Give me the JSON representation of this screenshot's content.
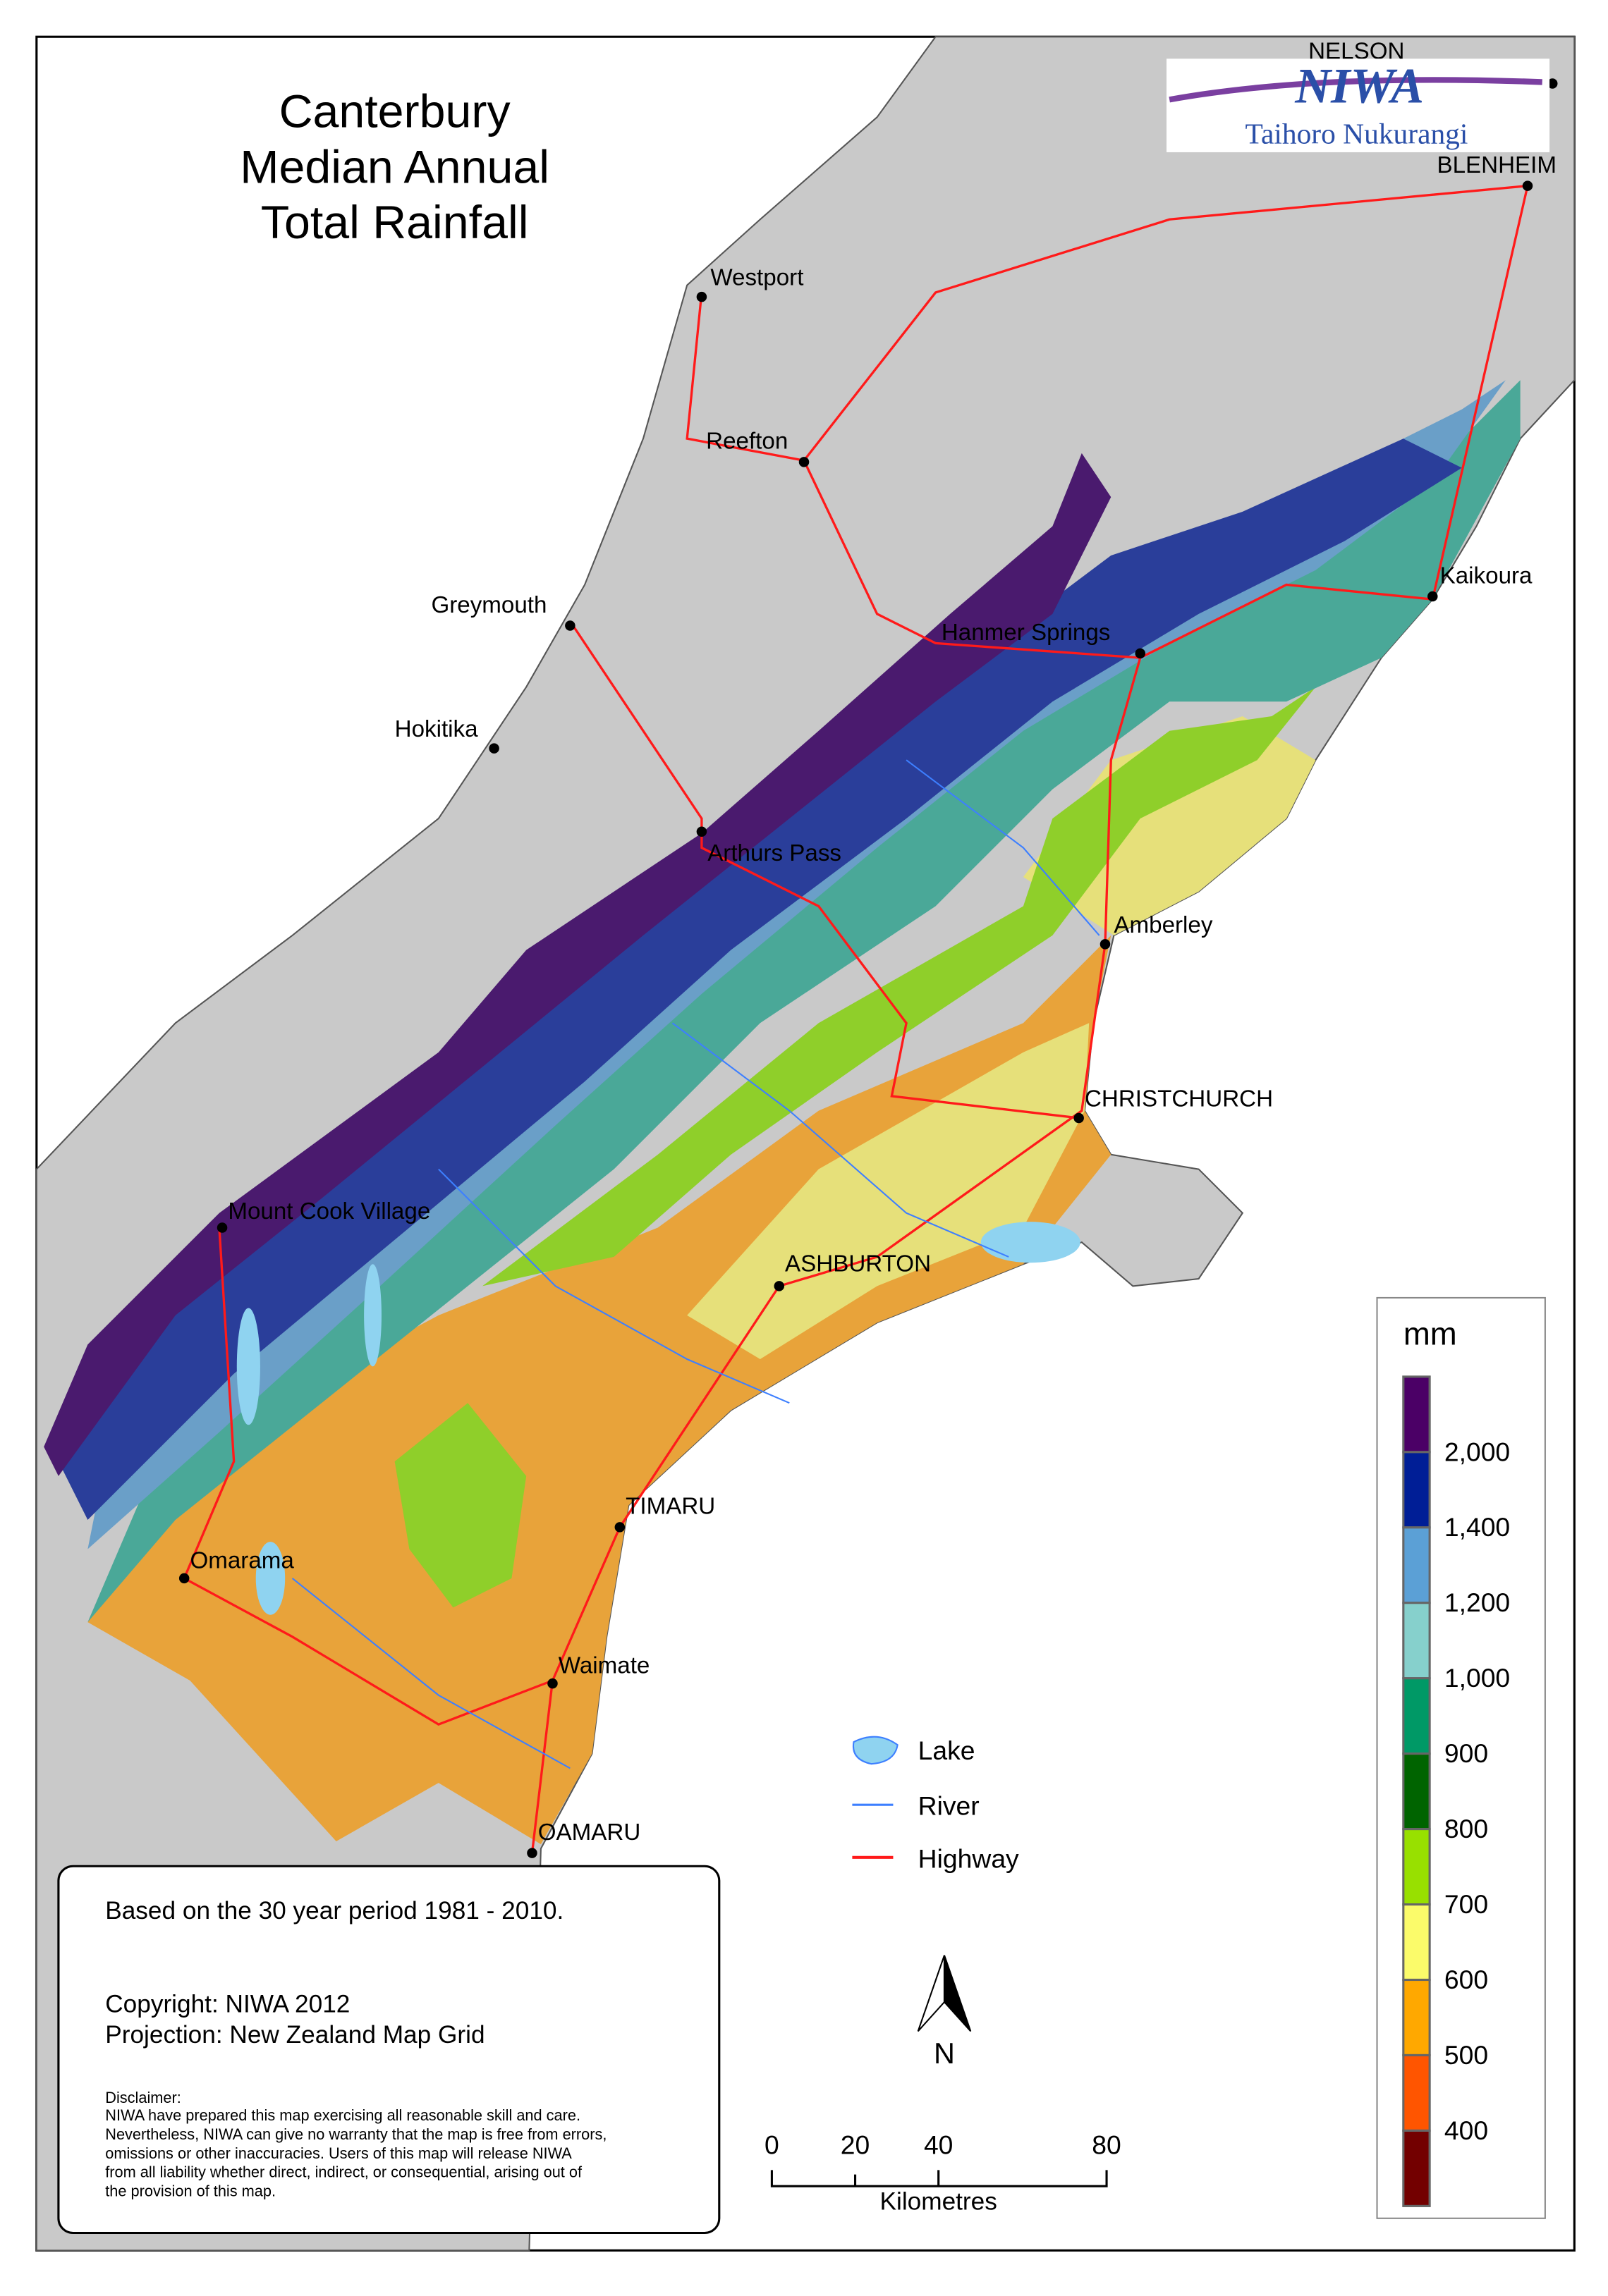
{
  "title": {
    "line1": "Canterbury",
    "line2": "Median Annual",
    "line3": "Total Rainfall"
  },
  "logo": {
    "name": "NIWA",
    "subtitle": "Taihoro Nukurangi"
  },
  "towns": [
    {
      "name": "NELSON"
    },
    {
      "name": "BLENHEIM"
    },
    {
      "name": "Westport"
    },
    {
      "name": "Reefton"
    },
    {
      "name": "Greymouth"
    },
    {
      "name": "Hokitika"
    },
    {
      "name": "Kaikoura"
    },
    {
      "name": "Hanmer Springs"
    },
    {
      "name": "Arthurs Pass"
    },
    {
      "name": "Amberley"
    },
    {
      "name": "CHRISTCHURCH"
    },
    {
      "name": "Mount Cook Village"
    },
    {
      "name": "ASHBURTON"
    },
    {
      "name": "TIMARU"
    },
    {
      "name": "Omarama"
    },
    {
      "name": "Waimate"
    },
    {
      "name": "OAMARU"
    }
  ],
  "map_legend": {
    "lake": "Lake",
    "river": "River",
    "highway": "Highway",
    "colors": {
      "lake": "#8fd3f0",
      "river": "#3d7fff",
      "highway": "#ff1a1a"
    }
  },
  "north_arrow": "N",
  "scale_bar": {
    "ticks": [
      "0",
      "20",
      "40",
      "80"
    ],
    "unit": "Kilometres"
  },
  "color_legend": {
    "unit": "mm",
    "classes": [
      {
        "color": "#4b0066"
      },
      {
        "color": "#001e96"
      },
      {
        "color": "#5ba0d6"
      },
      {
        "color": "#86d0cc"
      },
      {
        "color": "#009966"
      },
      {
        "color": "#006400"
      },
      {
        "color": "#98e000"
      },
      {
        "color": "#fbfb6a"
      },
      {
        "color": "#ffa800"
      },
      {
        "color": "#ff5500"
      },
      {
        "color": "#730000"
      }
    ],
    "breaks": [
      "2,000",
      "1,400",
      "1,200",
      "1,000",
      "900",
      "800",
      "700",
      "600",
      "500",
      "400"
    ]
  },
  "info": {
    "period": "Based on the 30 year period 1981 - 2010.",
    "copyright": "Copyright: NIWA 2012",
    "projection": "Projection: New Zealand Map Grid",
    "disclaimer_title": "Disclaimer:",
    "disclaimer_lines": [
      "NIWA have prepared this map exercising all reasonable skill and care.",
      "Nevertheless, NIWA can give no warranty that the map is free from errors,",
      "omissions or other inaccuracies. Users of this map will release NIWA",
      "from all liability whether direct, indirect, or consequential, arising out of",
      "the provision of this map."
    ]
  }
}
